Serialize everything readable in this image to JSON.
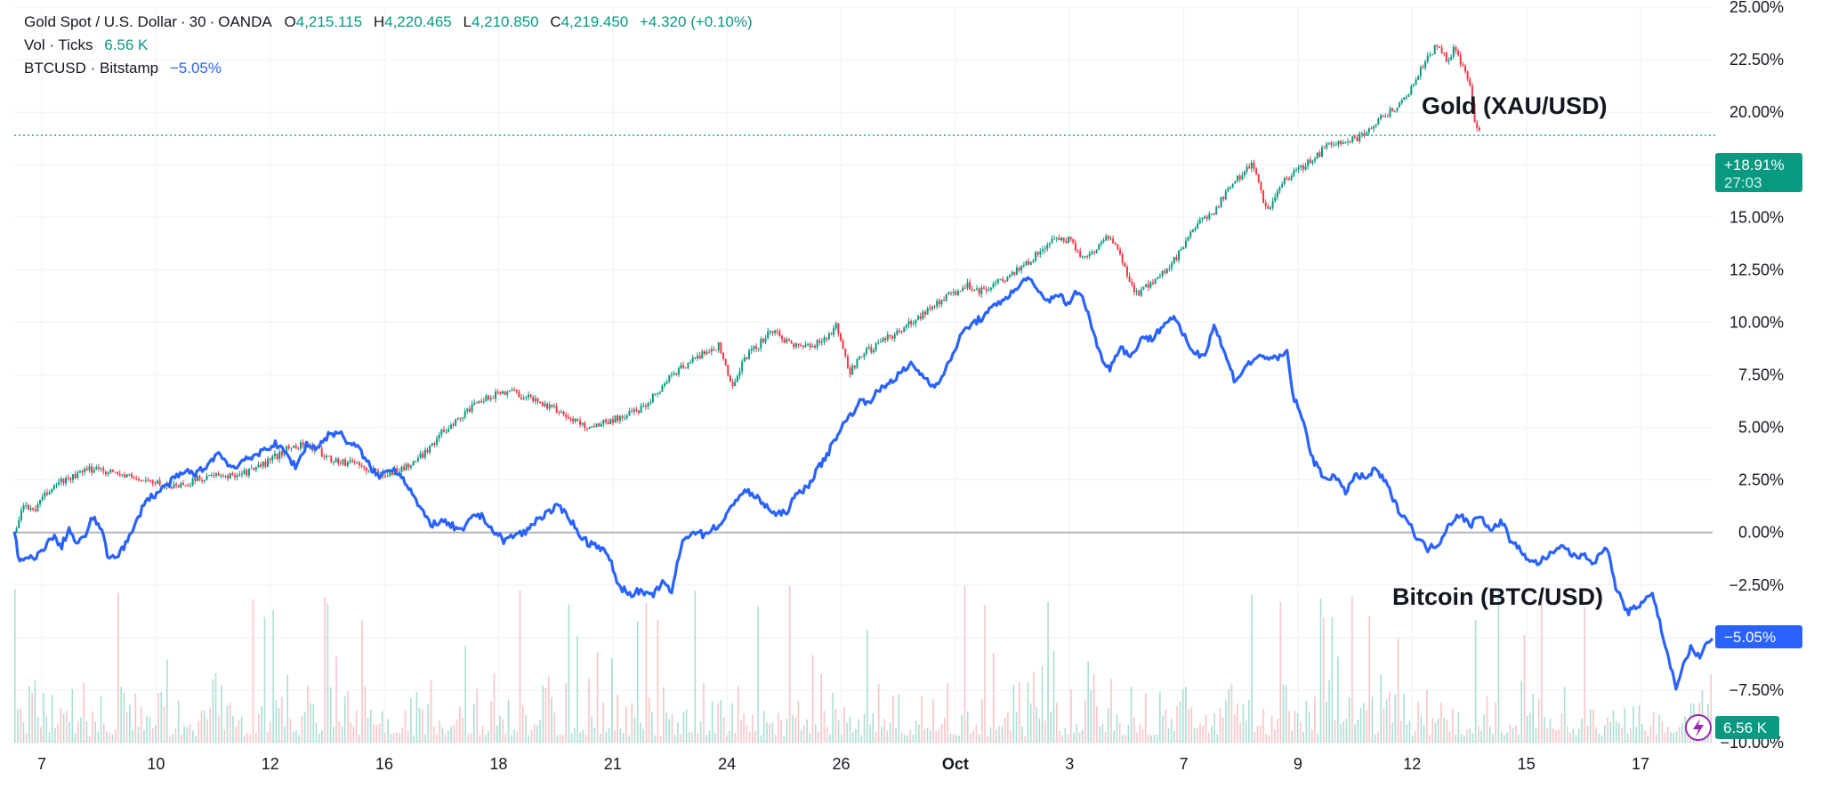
{
  "legend": {
    "symbol": "Gold Spot / U.S. Dollar",
    "interval": "30",
    "source": "OANDA",
    "o_label": "O",
    "o_value": "4,215.115",
    "h_label": "H",
    "h_value": "4,220.465",
    "l_label": "L",
    "l_value": "4,210.850",
    "c_label": "C",
    "c_value": "4,219.450",
    "change": "+4.320 (+0.10%)",
    "vol_label": "Vol · Ticks",
    "vol_value": "6.56 K",
    "compare_label": "BTCUSD · Bitstamp",
    "compare_value": "−5.05%"
  },
  "badges": {
    "gold_pct": "+18.91%",
    "gold_timer": "27:03",
    "btc_pct": "−5.05%",
    "vol": "6.56 K"
  },
  "annotations": {
    "gold": "Gold (XAU/USD)",
    "btc": "Bitcoin (BTC/USD)"
  },
  "colors": {
    "up": "#089981",
    "down": "#f23645",
    "btc": "#2962ff",
    "vol_up": "#8fd3c6",
    "vol_down": "#f7b1b6",
    "grid": "#f0f3fa"
  },
  "chart_data": {
    "type": "line",
    "ylim": [
      -10.0,
      25.0
    ],
    "y_ticks": [
      "25.00%",
      "22.50%",
      "20.00%",
      "17.50%",
      "15.00%",
      "12.50%",
      "10.00%",
      "7.50%",
      "5.00%",
      "2.50%",
      "0.00%",
      "−2.50%",
      "−5.00%",
      "−7.50%",
      "−10.00%"
    ],
    "x_ticks": [
      "7",
      "10",
      "12",
      "16",
      "18",
      "21",
      "24",
      "26",
      "Oct",
      "3",
      "7",
      "9",
      "12",
      "15",
      "17"
    ],
    "series": [
      {
        "name": "Gold (XAU/USD)",
        "style": "candles",
        "points": [
          [
            0,
            0.0
          ],
          [
            3,
            1.2
          ],
          [
            8,
            1.1
          ],
          [
            12,
            1.8
          ],
          [
            17,
            2.4
          ],
          [
            22,
            2.6
          ],
          [
            27,
            2.9
          ],
          [
            32,
            3.1
          ],
          [
            36,
            2.9
          ],
          [
            40,
            2.8
          ],
          [
            45,
            2.6
          ],
          [
            50,
            2.5
          ],
          [
            55,
            2.3
          ],
          [
            60,
            2.2
          ],
          [
            65,
            2.3
          ],
          [
            70,
            2.5
          ],
          [
            75,
            2.7
          ],
          [
            80,
            2.6
          ],
          [
            85,
            2.8
          ],
          [
            90,
            2.9
          ],
          [
            95,
            3.2
          ],
          [
            100,
            3.6
          ],
          [
            105,
            4.0
          ],
          [
            110,
            4.2
          ],
          [
            115,
            4.0
          ],
          [
            120,
            3.6
          ],
          [
            125,
            3.3
          ],
          [
            130,
            3.4
          ],
          [
            135,
            3.0
          ],
          [
            140,
            2.8
          ],
          [
            145,
            2.9
          ],
          [
            150,
            3.1
          ],
          [
            155,
            3.5
          ],
          [
            160,
            4.2
          ],
          [
            165,
            4.9
          ],
          [
            170,
            5.4
          ],
          [
            175,
            5.9
          ],
          [
            180,
            6.3
          ],
          [
            185,
            6.6
          ],
          [
            190,
            6.8
          ],
          [
            195,
            6.5
          ],
          [
            200,
            6.3
          ],
          [
            205,
            6.0
          ],
          [
            210,
            5.7
          ],
          [
            215,
            5.3
          ],
          [
            220,
            5.0
          ],
          [
            225,
            5.2
          ],
          [
            230,
            5.4
          ],
          [
            235,
            5.6
          ],
          [
            240,
            5.9
          ],
          [
            245,
            6.5
          ],
          [
            250,
            7.2
          ],
          [
            255,
            7.8
          ],
          [
            260,
            8.2
          ],
          [
            265,
            8.6
          ],
          [
            270,
            8.9
          ],
          [
            275,
            7.0
          ],
          [
            280,
            8.3
          ],
          [
            285,
            8.9
          ],
          [
            290,
            9.6
          ],
          [
            295,
            9.2
          ],
          [
            300,
            8.9
          ],
          [
            305,
            8.8
          ],
          [
            310,
            9.2
          ],
          [
            315,
            9.8
          ],
          [
            320,
            7.6
          ],
          [
            325,
            8.5
          ],
          [
            330,
            8.8
          ],
          [
            335,
            9.3
          ],
          [
            340,
            9.6
          ],
          [
            345,
            10.1
          ],
          [
            350,
            10.6
          ],
          [
            355,
            11.0
          ],
          [
            360,
            11.4
          ],
          [
            365,
            11.8
          ],
          [
            370,
            11.5
          ],
          [
            375,
            11.8
          ],
          [
            380,
            12.0
          ],
          [
            385,
            12.5
          ],
          [
            390,
            13.0
          ],
          [
            395,
            13.6
          ],
          [
            400,
            14.0
          ],
          [
            405,
            13.9
          ],
          [
            410,
            13.0
          ],
          [
            415,
            13.6
          ],
          [
            420,
            14.1
          ],
          [
            425,
            12.8
          ],
          [
            430,
            11.3
          ],
          [
            435,
            11.8
          ],
          [
            440,
            12.3
          ],
          [
            445,
            13.0
          ],
          [
            450,
            14.0
          ],
          [
            455,
            14.8
          ],
          [
            460,
            15.3
          ],
          [
            465,
            16.3
          ],
          [
            470,
            17.0
          ],
          [
            475,
            17.6
          ],
          [
            480,
            15.2
          ],
          [
            485,
            16.5
          ],
          [
            490,
            17.0
          ],
          [
            495,
            17.5
          ],
          [
            500,
            18.0
          ],
          [
            505,
            18.6
          ],
          [
            510,
            18.6
          ],
          [
            515,
            18.8
          ],
          [
            520,
            19.3
          ],
          [
            525,
            19.8
          ],
          [
            530,
            20.3
          ],
          [
            535,
            21.0
          ],
          [
            540,
            22.2
          ],
          [
            545,
            23.2
          ],
          [
            549,
            22.5
          ],
          [
            552,
            23.0
          ],
          [
            555,
            22.2
          ],
          [
            558,
            21.2
          ],
          [
            560,
            19.5
          ],
          [
            562,
            18.9
          ]
        ]
      },
      {
        "name": "Bitcoin (BTC/USD)",
        "style": "line",
        "points": [
          [
            0,
            0.2
          ],
          [
            2,
            -1.5
          ],
          [
            5,
            -1.2
          ],
          [
            8,
            -1.3
          ],
          [
            12,
            -0.6
          ],
          [
            15,
            -0.2
          ],
          [
            18,
            -0.7
          ],
          [
            21,
            0.2
          ],
          [
            24,
            -0.6
          ],
          [
            27,
            -0.2
          ],
          [
            30,
            0.7
          ],
          [
            33,
            0.3
          ],
          [
            36,
            -1.2
          ],
          [
            40,
            -1.0
          ],
          [
            43,
            -0.5
          ],
          [
            46,
            0.2
          ],
          [
            50,
            1.5
          ],
          [
            54,
            1.8
          ],
          [
            58,
            2.2
          ],
          [
            62,
            2.6
          ],
          [
            66,
            2.9
          ],
          [
            70,
            2.8
          ],
          [
            74,
            3.2
          ],
          [
            78,
            3.8
          ],
          [
            82,
            3.3
          ],
          [
            85,
            3.0
          ],
          [
            88,
            3.6
          ],
          [
            92,
            3.5
          ],
          [
            96,
            4.0
          ],
          [
            100,
            4.2
          ],
          [
            104,
            3.8
          ],
          [
            108,
            3.1
          ],
          [
            112,
            4.2
          ],
          [
            116,
            4.0
          ],
          [
            120,
            4.6
          ],
          [
            124,
            4.8
          ],
          [
            128,
            4.3
          ],
          [
            132,
            4.0
          ],
          [
            136,
            3.2
          ],
          [
            140,
            2.6
          ],
          [
            144,
            3.1
          ],
          [
            148,
            2.8
          ],
          [
            152,
            2.0
          ],
          [
            156,
            1.0
          ],
          [
            160,
            0.4
          ],
          [
            164,
            0.5
          ],
          [
            168,
            0.3
          ],
          [
            172,
            0.0
          ],
          [
            176,
            0.9
          ],
          [
            180,
            0.7
          ],
          [
            184,
            0.0
          ],
          [
            188,
            -0.4
          ],
          [
            192,
            -0.1
          ],
          [
            196,
            0.0
          ],
          [
            200,
            0.6
          ],
          [
            204,
            0.9
          ],
          [
            208,
            1.2
          ],
          [
            212,
            0.9
          ],
          [
            216,
            0.0
          ],
          [
            220,
            -0.5
          ],
          [
            224,
            -0.6
          ],
          [
            228,
            -1.2
          ],
          [
            232,
            -2.6
          ],
          [
            236,
            -2.9
          ],
          [
            240,
            -2.8
          ],
          [
            244,
            -3.1
          ],
          [
            248,
            -2.4
          ],
          [
            252,
            -2.8
          ],
          [
            256,
            -0.5
          ],
          [
            260,
            0.1
          ],
          [
            264,
            -0.1
          ],
          [
            268,
            0.2
          ],
          [
            272,
            0.5
          ],
          [
            276,
            1.5
          ],
          [
            280,
            2.0
          ],
          [
            284,
            1.7
          ],
          [
            288,
            1.3
          ],
          [
            292,
            0.8
          ],
          [
            296,
            1.0
          ],
          [
            300,
            1.8
          ],
          [
            304,
            2.2
          ],
          [
            308,
            3.0
          ],
          [
            312,
            3.8
          ],
          [
            316,
            4.8
          ],
          [
            320,
            5.5
          ],
          [
            324,
            6.2
          ],
          [
            328,
            6.3
          ],
          [
            332,
            6.8
          ],
          [
            336,
            7.2
          ],
          [
            340,
            7.6
          ],
          [
            344,
            8.0
          ],
          [
            348,
            7.5
          ],
          [
            352,
            7.0
          ],
          [
            356,
            7.4
          ],
          [
            360,
            8.6
          ],
          [
            364,
            9.6
          ],
          [
            368,
            10.0
          ],
          [
            372,
            10.3
          ],
          [
            376,
            10.8
          ],
          [
            380,
            11.2
          ],
          [
            384,
            11.5
          ],
          [
            388,
            12.2
          ],
          [
            392,
            11.5
          ],
          [
            396,
            11.0
          ],
          [
            400,
            11.4
          ],
          [
            404,
            10.8
          ],
          [
            408,
            11.6
          ],
          [
            412,
            10.3
          ],
          [
            416,
            8.5
          ],
          [
            420,
            7.8
          ],
          [
            424,
            8.9
          ],
          [
            428,
            8.3
          ],
          [
            432,
            9.3
          ],
          [
            436,
            9.2
          ],
          [
            440,
            9.8
          ],
          [
            444,
            10.3
          ],
          [
            448,
            9.4
          ],
          [
            452,
            8.6
          ],
          [
            456,
            8.4
          ],
          [
            460,
            9.9
          ],
          [
            464,
            8.5
          ],
          [
            468,
            7.2
          ],
          [
            472,
            7.9
          ],
          [
            476,
            8.3
          ],
          [
            480,
            8.4
          ],
          [
            484,
            8.2
          ],
          [
            488,
            8.6
          ],
          [
            490,
            6.6
          ],
          [
            494,
            5.3
          ],
          [
            498,
            3.4
          ],
          [
            502,
            2.6
          ],
          [
            506,
            2.7
          ],
          [
            510,
            1.9
          ],
          [
            514,
            2.7
          ],
          [
            518,
            2.6
          ],
          [
            522,
            3.0
          ],
          [
            526,
            2.3
          ],
          [
            530,
            1.2
          ],
          [
            534,
            0.6
          ],
          [
            538,
            -0.3
          ],
          [
            542,
            -0.8
          ],
          [
            546,
            -0.5
          ],
          [
            550,
            0.4
          ],
          [
            554,
            0.9
          ],
          [
            558,
            0.3
          ],
          [
            562,
            0.9
          ],
          [
            566,
            0.0
          ],
          [
            570,
            0.6
          ],
          [
            574,
            -0.5
          ],
          [
            578,
            -0.9
          ],
          [
            582,
            -1.5
          ],
          [
            586,
            -1.3
          ],
          [
            590,
            -1.0
          ],
          [
            594,
            -0.6
          ],
          [
            598,
            -1.2
          ],
          [
            602,
            -1.0
          ],
          [
            606,
            -1.5
          ],
          [
            610,
            -0.5
          ],
          [
            614,
            -2.6
          ],
          [
            618,
            -3.8
          ],
          [
            622,
            -3.6
          ],
          [
            626,
            -3.0
          ],
          [
            628,
            -2.9
          ],
          [
            631,
            -4.4
          ],
          [
            634,
            -6.0
          ],
          [
            637,
            -7.3
          ],
          [
            640,
            -6.3
          ],
          [
            643,
            -5.4
          ],
          [
            646,
            -6.0
          ],
          [
            649,
            -5.2
          ],
          [
            651,
            -5.05
          ]
        ]
      }
    ]
  }
}
